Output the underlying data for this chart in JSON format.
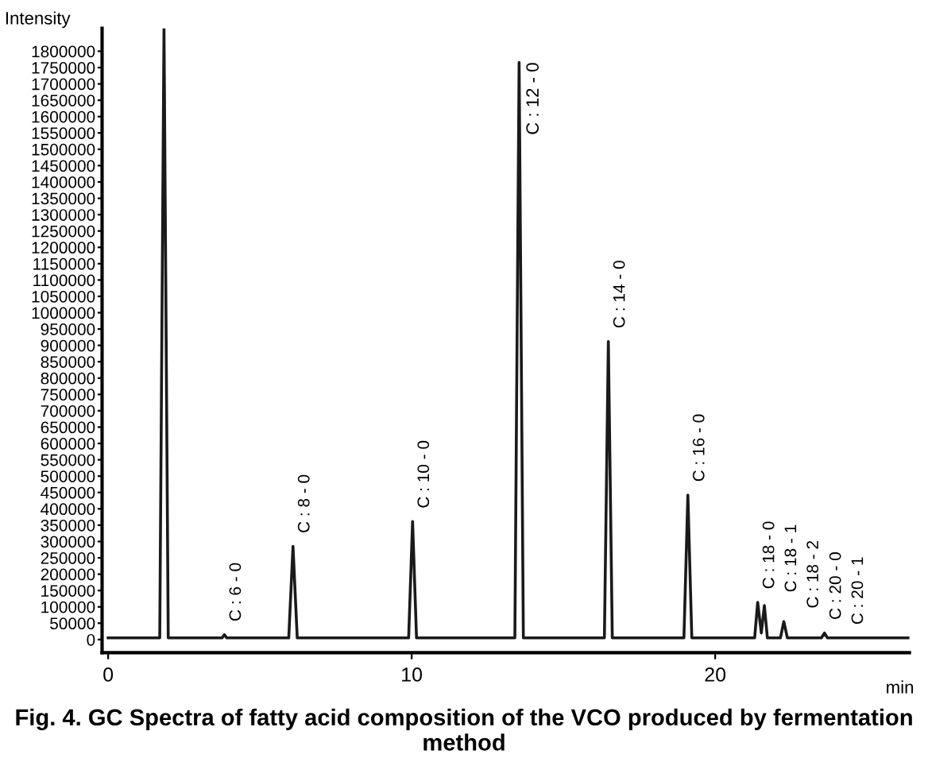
{
  "chart_data": {
    "type": "line",
    "ylabel": "Intensity",
    "xlabel": "min",
    "xlim": [
      -0.2,
      26.4
    ],
    "xticks": [
      0,
      10,
      20
    ],
    "ylim": [
      -40000,
      1870000
    ],
    "yticks": [
      0,
      50000,
      100000,
      150000,
      200000,
      250000,
      300000,
      350000,
      400000,
      450000,
      500000,
      550000,
      600000,
      650000,
      700000,
      750000,
      800000,
      850000,
      900000,
      950000,
      1000000,
      1050000,
      1100000,
      1150000,
      1200000,
      1250000,
      1300000,
      1350000,
      1400000,
      1450000,
      1500000,
      1550000,
      1600000,
      1650000,
      1700000,
      1750000,
      1800000
    ],
    "grid": false,
    "legend": false,
    "marker": "none",
    "line_style": "solid",
    "series": [
      {
        "color": "#1a1a1a",
        "x": [
          0,
          1.7,
          1.84,
          1.98,
          3.75,
          3.83,
          3.91,
          5.95,
          6.09,
          6.23,
          9.9,
          10.03,
          10.16,
          13.4,
          13.54,
          13.68,
          16.35,
          16.48,
          16.61,
          18.97,
          19.1,
          19.23,
          21.3,
          21.4,
          21.52,
          21.62,
          21.72,
          21.85,
          22.15,
          22.26,
          22.38,
          23.5,
          23.6,
          23.7,
          26.4
        ],
        "values": [
          5000,
          5000,
          1870000,
          5000,
          5000,
          15000,
          5000,
          5000,
          285000,
          5000,
          5000,
          361000,
          5000,
          5000,
          1766000,
          5000,
          5000,
          912000,
          5000,
          5000,
          442000,
          5000,
          5000,
          114000,
          20000,
          104000,
          5000,
          5000,
          5000,
          55000,
          5000,
          5000,
          20000,
          5000,
          5000
        ]
      }
    ],
    "annotations": [
      {
        "text": "C : 6 - 0",
        "x": 3.83,
        "y": 15000
      },
      {
        "text": "C : 8 - 0",
        "x": 6.09,
        "y": 285000
      },
      {
        "text": "C : 10 - 0",
        "x": 10.03,
        "y": 361000
      },
      {
        "text": "C : 12 - 0",
        "x": 13.54,
        "y": 1766000
      },
      {
        "text": "C : 14 - 0",
        "x": 16.48,
        "y": 912000
      },
      {
        "text": "C : 16 - 0",
        "x": 19.1,
        "y": 442000
      },
      {
        "text": "C : 18 - 0",
        "x": 21.4,
        "y": 114000
      },
      {
        "text": "C : 18 - 1",
        "x": 21.72,
        "y": 104000
      },
      {
        "text": "C : 18 - 2",
        "x": 22.26,
        "y": 55000
      },
      {
        "text": "C : 20 - 0",
        "x": 23.6,
        "y": 20000
      },
      {
        "text": "C : 20 - 1",
        "x": 23.9,
        "y": 5000
      },
      "Fig. 4. GC Spectra of fatty acid composition of the VCO produced by fermentation method"
    ]
  }
}
